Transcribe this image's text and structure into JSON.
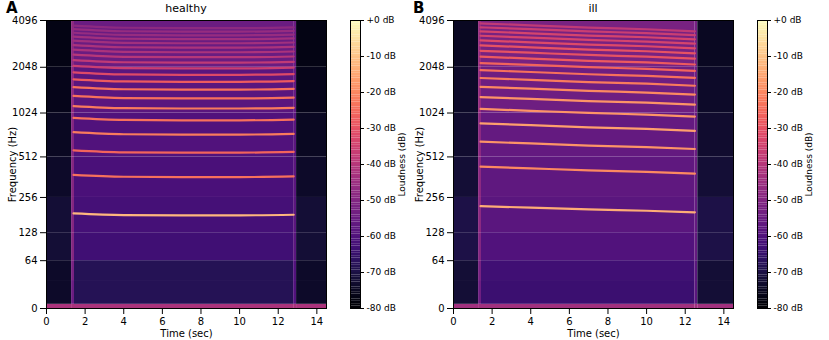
{
  "chart_data": [
    {
      "type": "heatmap",
      "panel_label": "A",
      "title": "healthy",
      "x_label": "Time (sec)",
      "y_label": "Frequency (Hz)",
      "xlim": [
        0,
        14.5
      ],
      "xticks": [
        0,
        2,
        4,
        6,
        8,
        10,
        12,
        14
      ],
      "ylim": [
        0,
        4096
      ],
      "yticks": [
        0,
        64,
        128,
        256,
        512,
        1024,
        2048,
        4096
      ],
      "log": "y",
      "time_edges": [
        0,
        1.3,
        1.45,
        12.8,
        12.95,
        14.5
      ],
      "freq_edges": [
        0,
        4,
        32,
        64,
        128,
        256,
        512,
        1024,
        2048,
        4096
      ],
      "cells": [
        [
          -42,
          -42,
          -42,
          -42,
          -42
        ],
        [
          -74,
          -55,
          -68,
          -60,
          -74
        ],
        [
          -74,
          -52,
          -68,
          -60,
          -74
        ],
        [
          -72,
          -50,
          -63,
          -58,
          -72
        ],
        [
          -72,
          -50,
          -62,
          -58,
          -72
        ],
        [
          -74,
          -50,
          -61,
          -58,
          -74
        ],
        [
          -75,
          -50,
          -60,
          -58,
          -75
        ],
        [
          -76,
          -48,
          -58,
          -56,
          -76
        ],
        [
          -77,
          -48,
          -55,
          -55,
          -77
        ]
      ],
      "harmonic_times": [
        1.4,
        4,
        7,
        10,
        12.8
      ],
      "harmonics": [
        {
          "freqs": [
            190,
            184,
            183,
            183,
            185
          ],
          "db": -12
        },
        {
          "freqs": [
            380,
            368,
            366,
            366,
            370
          ],
          "db": -24
        },
        {
          "freqs": [
            570,
            552,
            549,
            549,
            555
          ],
          "db": -26
        },
        {
          "freqs": [
            760,
            736,
            732,
            732,
            740
          ],
          "db": -22
        },
        {
          "freqs": [
            950,
            920,
            915,
            915,
            925
          ],
          "db": -24
        },
        {
          "freqs": [
            1140,
            1104,
            1098,
            1098,
            1110
          ],
          "db": -22
        },
        {
          "freqs": [
            1330,
            1288,
            1281,
            1281,
            1295
          ],
          "db": -24
        },
        {
          "freqs": [
            1520,
            1472,
            1464,
            1464,
            1480
          ],
          "db": -24
        },
        {
          "freqs": [
            1710,
            1656,
            1647,
            1647,
            1665
          ],
          "db": -28
        },
        {
          "freqs": [
            1900,
            1840,
            1830,
            1830,
            1850
          ],
          "db": -32
        },
        {
          "freqs": [
            2090,
            2024,
            2013,
            2013,
            2035
          ],
          "db": -36
        },
        {
          "freqs": [
            2280,
            2208,
            2196,
            2196,
            2220
          ],
          "db": -38
        },
        {
          "freqs": [
            2470,
            2392,
            2379,
            2379,
            2405
          ],
          "db": -40
        },
        {
          "freqs": [
            2660,
            2576,
            2562,
            2562,
            2590
          ],
          "db": -42
        },
        {
          "freqs": [
            2850,
            2760,
            2745,
            2745,
            2775
          ],
          "db": -42
        },
        {
          "freqs": [
            3040,
            2944,
            2928,
            2928,
            2960
          ],
          "db": -44
        },
        {
          "freqs": [
            3230,
            3128,
            3111,
            3111,
            3145
          ],
          "db": -44
        },
        {
          "freqs": [
            3420,
            3312,
            3294,
            3294,
            3330
          ],
          "db": -46
        },
        {
          "freqs": [
            3610,
            3496,
            3477,
            3477,
            3515
          ],
          "db": -46
        },
        {
          "freqs": [
            3800,
            3680,
            3660,
            3660,
            3700
          ],
          "db": -48
        }
      ],
      "colorbar": {
        "label": "Loudness (dB)",
        "range": [
          -80,
          0
        ],
        "ticks": [
          {
            "value": 0,
            "label": "+0 dB"
          },
          {
            "value": -10,
            "label": "-10 dB"
          },
          {
            "value": -20,
            "label": "-20 dB"
          },
          {
            "value": -30,
            "label": "-30 dB"
          },
          {
            "value": -40,
            "label": "-40 dB"
          },
          {
            "value": -50,
            "label": "-50 dB"
          },
          {
            "value": -60,
            "label": "-60 dB"
          },
          {
            "value": -70,
            "label": "-70 dB"
          },
          {
            "value": -80,
            "label": "-80 dB"
          }
        ]
      }
    },
    {
      "type": "heatmap",
      "panel_label": "B",
      "title": "ill",
      "x_label": "Time (sec)",
      "y_label": "Frequency (Hz)",
      "xlim": [
        0,
        14.5
      ],
      "xticks": [
        0,
        2,
        4,
        6,
        8,
        10,
        12,
        14
      ],
      "ylim": [
        0,
        4096
      ],
      "yticks": [
        0,
        64,
        128,
        256,
        512,
        1024,
        2048,
        4096
      ],
      "log": "y",
      "time_edges": [
        0,
        1.3,
        1.45,
        12.5,
        12.65,
        14.5
      ],
      "freq_edges": [
        0,
        4,
        32,
        64,
        128,
        256,
        512,
        1024,
        2048,
        4096
      ],
      "cells": [
        [
          -44,
          -44,
          -44,
          -44,
          -44
        ],
        [
          -72,
          -54,
          -64,
          -58,
          -72
        ],
        [
          -72,
          -52,
          -63,
          -58,
          -72
        ],
        [
          -70,
          -50,
          -60,
          -56,
          -70
        ],
        [
          -70,
          -48,
          -58,
          -56,
          -70
        ],
        [
          -72,
          -48,
          -57,
          -55,
          -72
        ],
        [
          -73,
          -48,
          -56,
          -55,
          -73
        ],
        [
          -74,
          -46,
          -54,
          -54,
          -74
        ],
        [
          -75,
          -46,
          -52,
          -53,
          -75
        ]
      ],
      "harmonic_times": [
        1.4,
        4,
        7,
        10,
        12.5
      ],
      "harmonics": [
        {
          "freqs": [
            218,
            212,
            205,
            200,
            194
          ],
          "db": -14
        },
        {
          "freqs": [
            436,
            424,
            410,
            400,
            388
          ],
          "db": -20
        },
        {
          "freqs": [
            654,
            636,
            615,
            600,
            582
          ],
          "db": -18
        },
        {
          "freqs": [
            872,
            848,
            820,
            800,
            776
          ],
          "db": -16
        },
        {
          "freqs": [
            1090,
            1060,
            1025,
            1000,
            970
          ],
          "db": -18
        },
        {
          "freqs": [
            1308,
            1272,
            1230,
            1200,
            1164
          ],
          "db": -18
        },
        {
          "freqs": [
            1526,
            1484,
            1435,
            1400,
            1358
          ],
          "db": -20
        },
        {
          "freqs": [
            1744,
            1696,
            1640,
            1600,
            1552
          ],
          "db": -22
        },
        {
          "freqs": [
            1962,
            1908,
            1845,
            1800,
            1746
          ],
          "db": -24
        },
        {
          "freqs": [
            2180,
            2120,
            2050,
            2000,
            1940
          ],
          "db": -26
        },
        {
          "freqs": [
            2398,
            2332,
            2255,
            2200,
            2134
          ],
          "db": -28
        },
        {
          "freqs": [
            2616,
            2544,
            2460,
            2400,
            2328
          ],
          "db": -30
        },
        {
          "freqs": [
            2834,
            2756,
            2665,
            2600,
            2522
          ],
          "db": -30
        },
        {
          "freqs": [
            3052,
            2968,
            2870,
            2800,
            2716
          ],
          "db": -32
        },
        {
          "freqs": [
            3270,
            3180,
            3075,
            3000,
            2910
          ],
          "db": -34
        },
        {
          "freqs": [
            3488,
            3392,
            3280,
            3200,
            3104
          ],
          "db": -34
        },
        {
          "freqs": [
            3706,
            3604,
            3485,
            3400,
            3298
          ],
          "db": -36
        },
        {
          "freqs": [
            3924,
            3816,
            3690,
            3600,
            3492
          ],
          "db": -38
        }
      ],
      "colorbar": {
        "label": "Loudness (dB)",
        "range": [
          -80,
          0
        ],
        "ticks": [
          {
            "value": 0,
            "label": "+0 dB"
          },
          {
            "value": -10,
            "label": "-10 dB"
          },
          {
            "value": -20,
            "label": "-20 dB"
          },
          {
            "value": -30,
            "label": "-30 dB"
          },
          {
            "value": -40,
            "label": "-40 dB"
          },
          {
            "value": -50,
            "label": "-50 dB"
          },
          {
            "value": -60,
            "label": "-60 dB"
          },
          {
            "value": -70,
            "label": "-70 dB"
          },
          {
            "value": -80,
            "label": "-80 dB"
          }
        ]
      }
    }
  ]
}
